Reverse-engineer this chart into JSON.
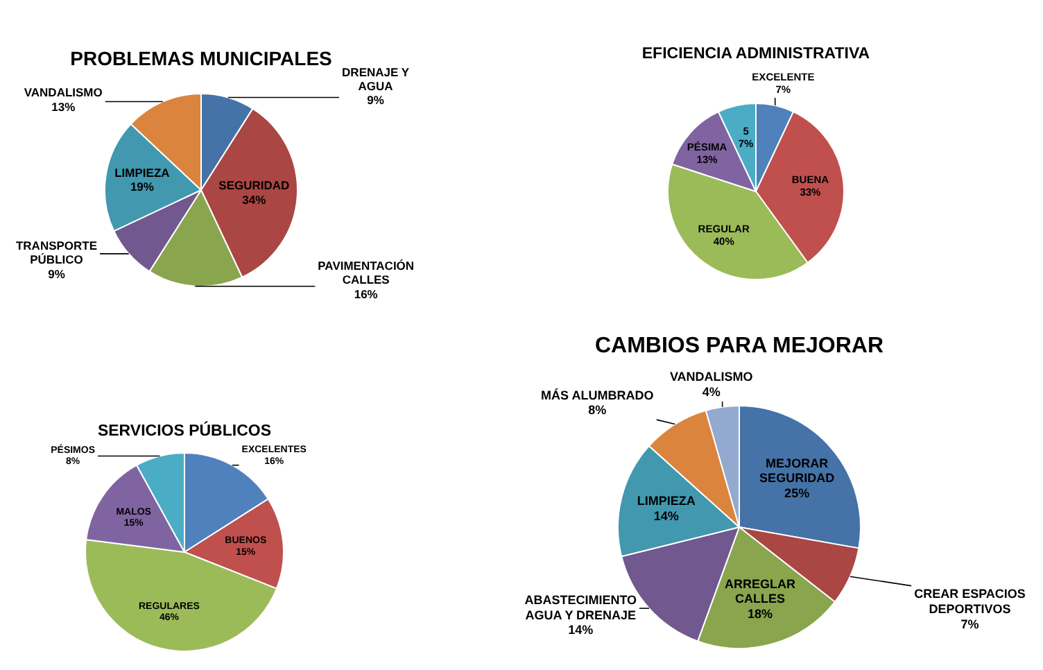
{
  "chart_data": [
    {
      "type": "pie",
      "title": "PROBLEMAS MUNICIPALES",
      "categories": [
        "DRENAJE Y AGUA",
        "SEGURIDAD",
        "PAVIMENTACIÓN CALLES",
        "TRANSPORTE PÚBLICO",
        "LIMPIEZA",
        "VANDALISMO"
      ],
      "values": [
        9,
        34,
        16,
        9,
        19,
        13
      ],
      "value_labels": [
        "9%",
        "34%",
        "16%",
        "9%",
        "19%",
        "13%"
      ],
      "colors": [
        "#4572a7",
        "#aa4643",
        "#89a54e",
        "#71588f",
        "#4198af",
        "#db843d"
      ]
    },
    {
      "type": "pie",
      "title": "EFICIENCIA ADMINISTRATIVA",
      "categories": [
        "EXCELENTE",
        "BUENA",
        "REGULAR",
        "PÉSIMA",
        "5"
      ],
      "values": [
        7,
        33,
        40,
        13,
        7
      ],
      "value_labels": [
        "7%",
        "33%",
        "40%",
        "13%",
        "7%"
      ],
      "colors": [
        "#4f81bd",
        "#c0504d",
        "#9bbb59",
        "#8064a2",
        "#4bacc6"
      ]
    },
    {
      "type": "pie",
      "title": "SERVICIOS PÚBLICOS",
      "categories": [
        "EXCELENTES",
        "BUENOS",
        "REGULARES",
        "MALOS",
        "PÉSIMOS"
      ],
      "values": [
        16,
        15,
        46,
        15,
        8
      ],
      "value_labels": [
        "16%",
        "15%",
        "46%",
        "15%",
        "8%"
      ],
      "colors": [
        "#4f81bd",
        "#c0504d",
        "#9bbb59",
        "#8064a2",
        "#4bacc6"
      ]
    },
    {
      "type": "pie",
      "title": "CAMBIOS PARA MEJORAR",
      "categories": [
        "MEJORAR SEGURIDAD",
        "CREAR ESPACIOS DEPORTIVOS",
        "ARREGLAR CALLES",
        "ABASTECIMIENTO AGUA Y DRENAJE",
        "LIMPIEZA",
        "MÁS ALUMBRADO",
        "VANDALISMO"
      ],
      "values": [
        25,
        7,
        18,
        14,
        14,
        8,
        4
      ],
      "value_labels": [
        "25%",
        "7%",
        "18%",
        "14%",
        "14%",
        "8%",
        "4%"
      ],
      "colors": [
        "#4572a7",
        "#aa4643",
        "#89a54e",
        "#71588f",
        "#4198af",
        "#db843d",
        "#93a9cf"
      ]
    }
  ]
}
